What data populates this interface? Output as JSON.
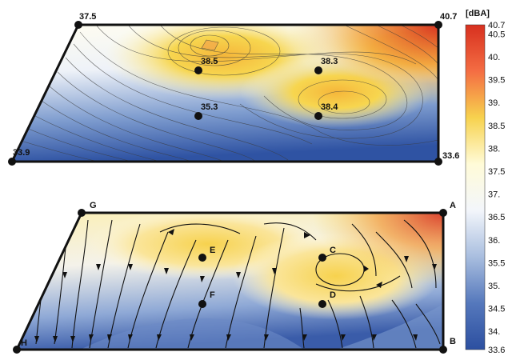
{
  "colorbar": {
    "unit": "[dBA]",
    "min": 33.6,
    "max": 40.7,
    "ticks": [
      "40.7",
      "40.5",
      "40.",
      "39.5",
      "39.",
      "38.5",
      "38.",
      "37.5",
      "37.",
      "36.5",
      "36.",
      "35.5",
      "35.",
      "34.5",
      "34.",
      "33.6"
    ],
    "colors": [
      "#d7301f",
      "#f46d43",
      "#f7d24e",
      "#fffbd8",
      "#f3f6fb",
      "#a9bedf",
      "#5578bc",
      "#2c4fa0"
    ]
  },
  "top_panel": {
    "corner_values": [
      "37.5",
      "40.7",
      "33.6",
      "33.9"
    ],
    "inner_values": [
      "38.5",
      "38.3",
      "35.3",
      "38.4"
    ]
  },
  "bottom_panel": {
    "corner_labels": [
      "G",
      "A",
      "B",
      "H"
    ],
    "inner_labels": [
      "E",
      "C",
      "F",
      "D"
    ]
  }
}
